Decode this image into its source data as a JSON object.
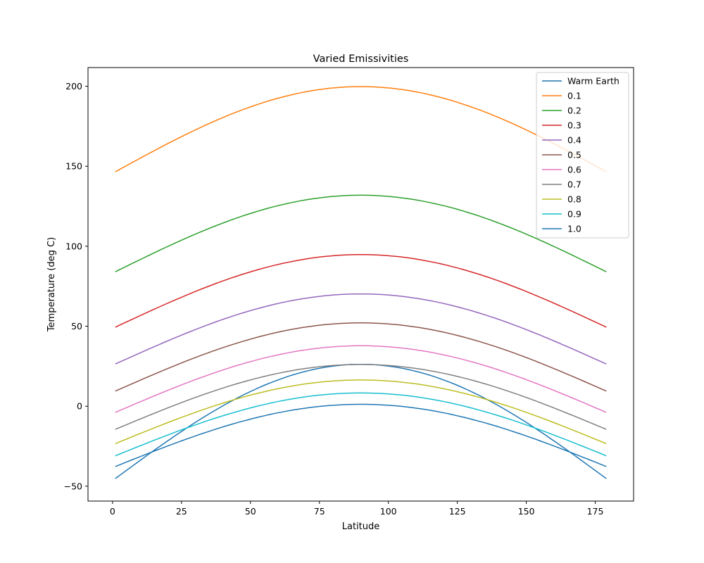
{
  "chart_data": {
    "type": "line",
    "title": "Varied Emissivities",
    "xlabel": "Latitude",
    "ylabel": "Temperature (deg C)",
    "xlim": [
      -8.9,
      188.9
    ],
    "ylim": [
      -59.3,
      211.7
    ],
    "xticks": [
      0,
      25,
      50,
      75,
      100,
      125,
      150,
      175
    ],
    "yticks": [
      -50,
      0,
      50,
      100,
      150,
      200
    ],
    "grid": false,
    "legend_position": "top-right",
    "x_start": 1,
    "x_end": 179,
    "series": [
      {
        "name": "Warm Earth",
        "color": "#1f77b4",
        "min": -46.5,
        "max": 26.2
      },
      {
        "name": "0.1",
        "color": "#ff7f0e",
        "min": 145.6,
        "max": 199.8
      },
      {
        "name": "0.2",
        "color": "#2ca02c",
        "min": 83.2,
        "max": 131.9
      },
      {
        "name": "0.3",
        "color": "#d62728",
        "min": 48.6,
        "max": 94.8
      },
      {
        "name": "0.4",
        "color": "#9467bd",
        "min": 25.6,
        "max": 70.2
      },
      {
        "name": "0.5",
        "color": "#8c564b",
        "min": 8.7,
        "max": 52.1
      },
      {
        "name": "0.6",
        "color": "#e377c2",
        "min": -4.6,
        "max": 37.8
      },
      {
        "name": "0.7",
        "color": "#7f7f7f",
        "min": -15.2,
        "max": 26.1
      },
      {
        "name": "0.8",
        "color": "#bcbd22",
        "min": -24.1,
        "max": 16.4
      },
      {
        "name": "0.9",
        "color": "#17becf",
        "min": -31.7,
        "max": 8.3
      },
      {
        "name": "1.0",
        "color": "#1f77b4",
        "min": -38.4,
        "max": 1.2
      }
    ]
  }
}
